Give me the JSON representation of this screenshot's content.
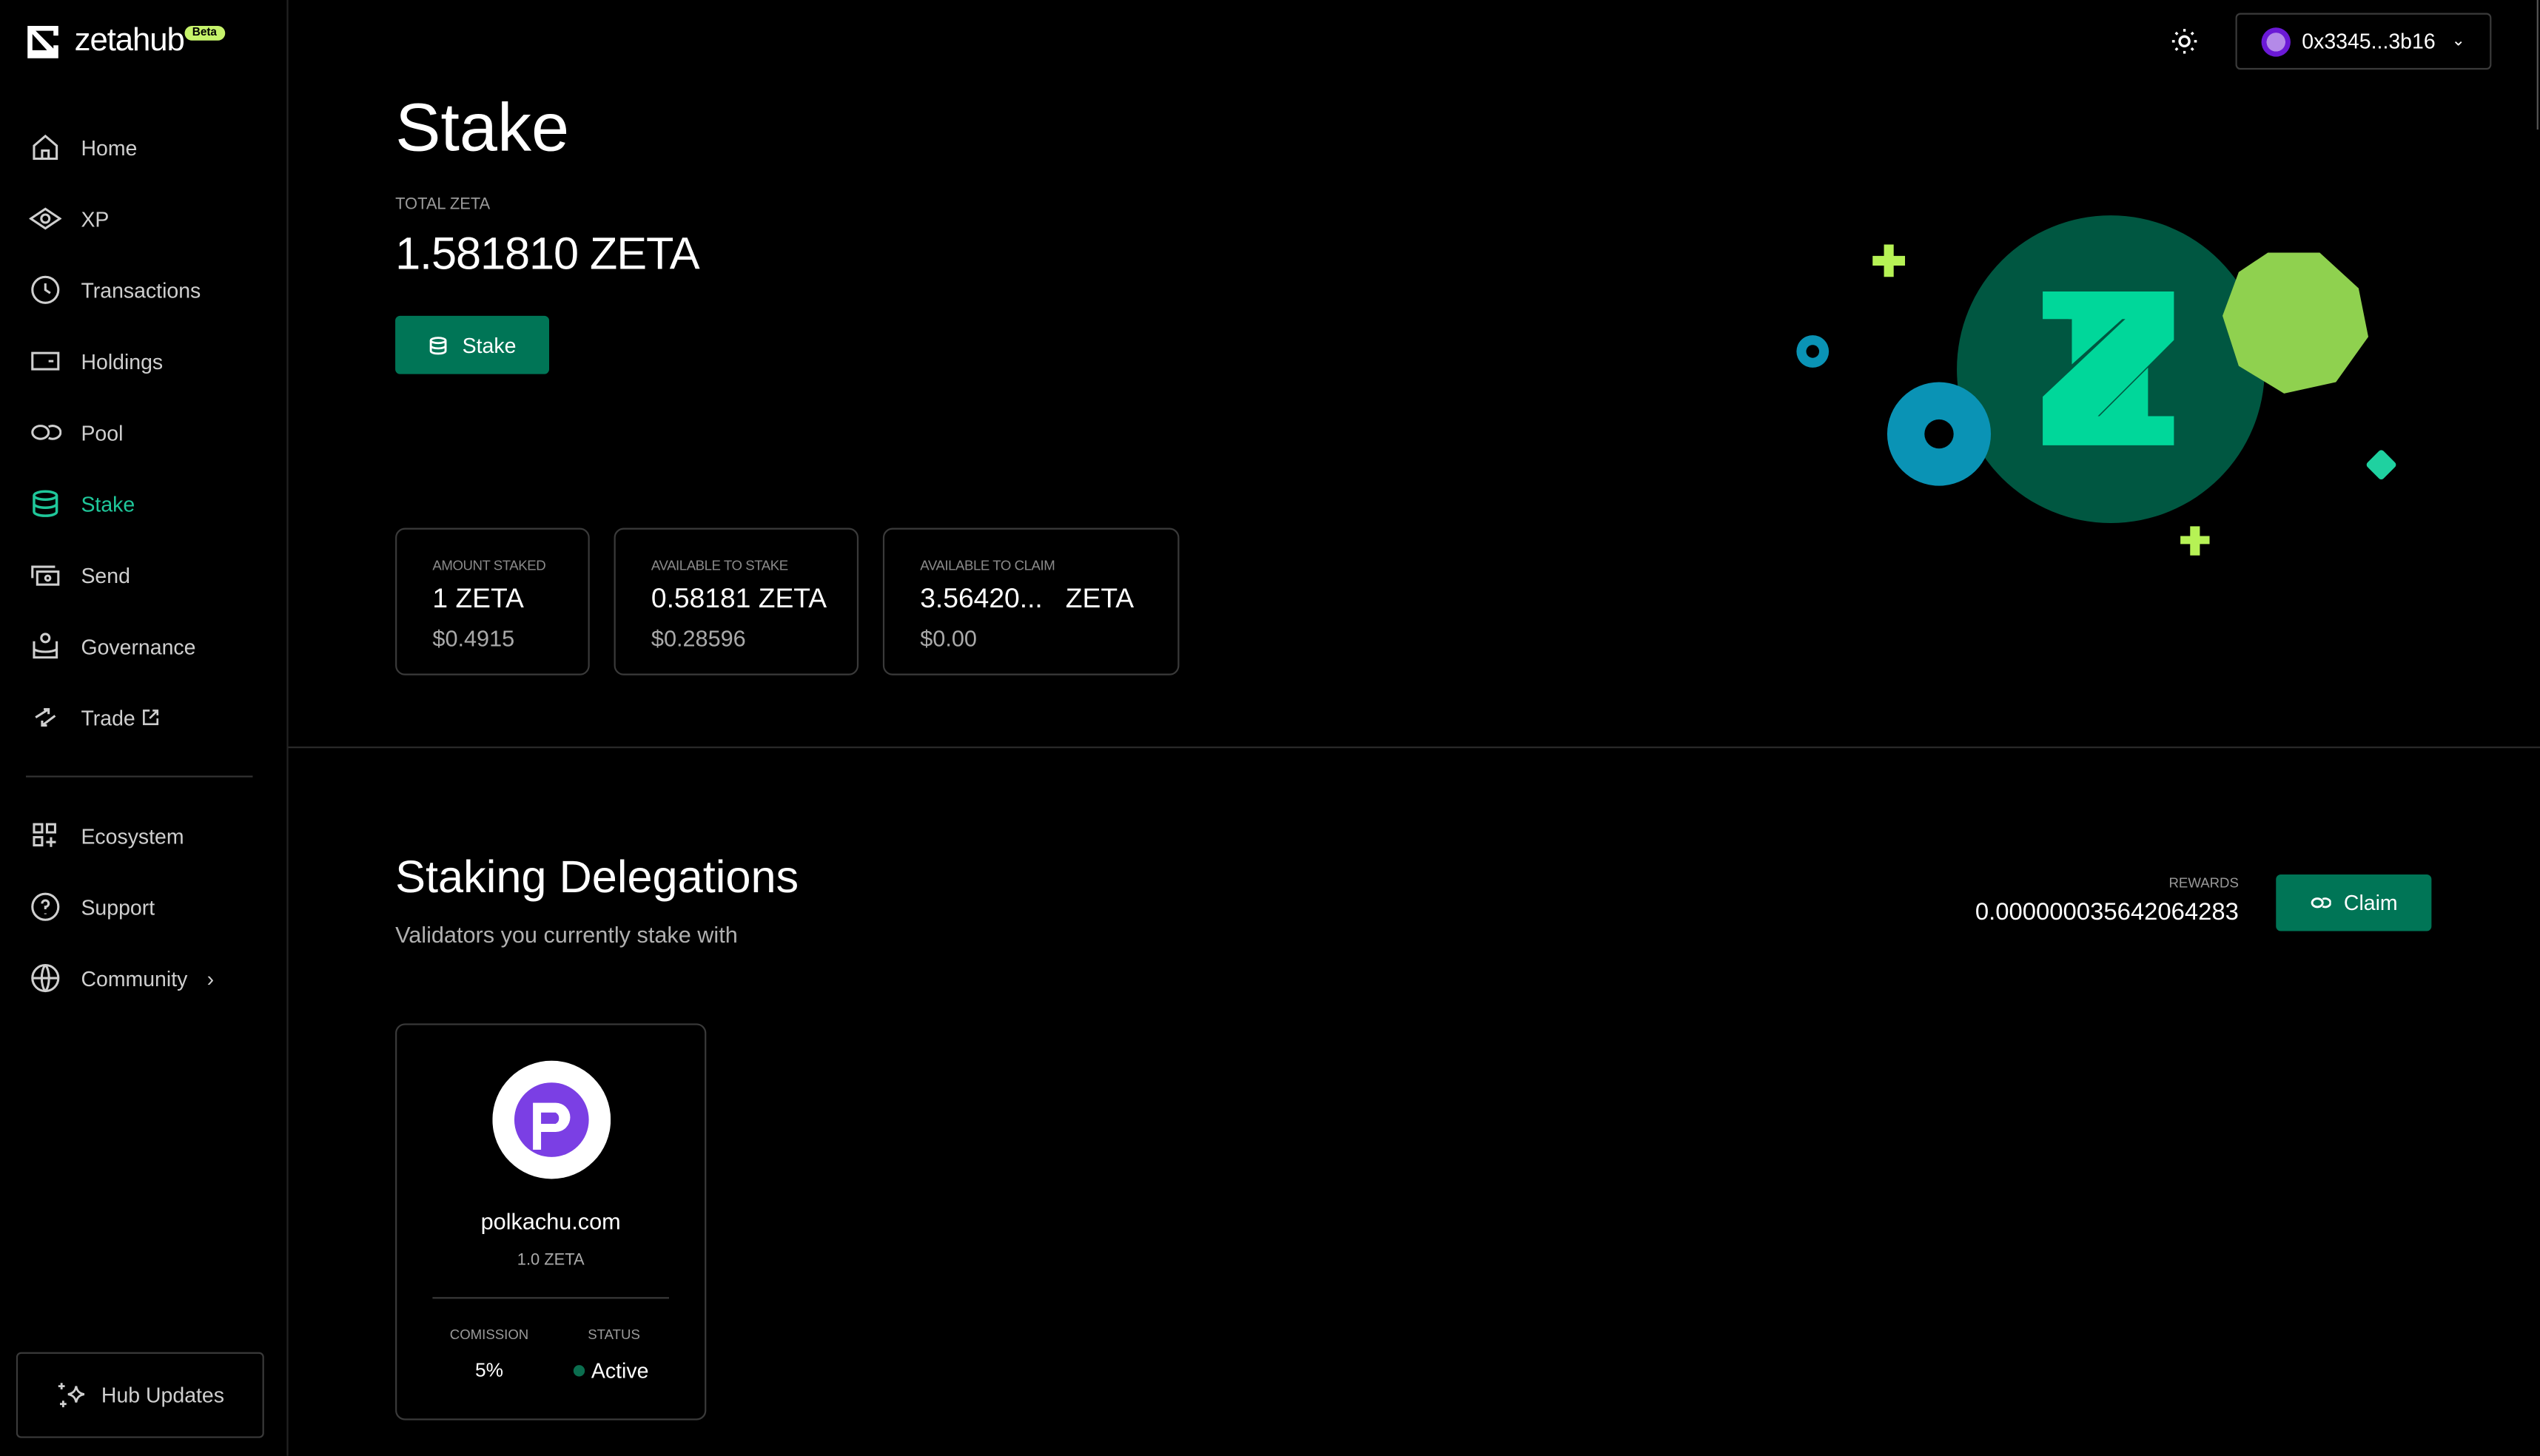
{
  "brand": {
    "name": "zetahub",
    "badge": "Beta"
  },
  "sidebar": {
    "items": [
      {
        "label": "Home",
        "icon": "home-icon"
      },
      {
        "label": "XP",
        "icon": "xp-diamond-icon"
      },
      {
        "label": "Transactions",
        "icon": "clock-icon"
      },
      {
        "label": "Holdings",
        "icon": "wallet-icon"
      },
      {
        "label": "Pool",
        "icon": "pool-icon"
      },
      {
        "label": "Stake",
        "icon": "database-icon",
        "active": true
      },
      {
        "label": "Send",
        "icon": "send-icon"
      },
      {
        "label": "Governance",
        "icon": "governance-icon"
      },
      {
        "label": "Trade",
        "icon": "trade-icon"
      }
    ],
    "secondary": [
      {
        "label": "Ecosystem",
        "icon": "apps-plus-icon"
      },
      {
        "label": "Support",
        "icon": "help-circle-icon"
      },
      {
        "label": "Community",
        "icon": "globe-icon"
      }
    ],
    "hub_updates": "Hub Updates"
  },
  "header": {
    "wallet": "0x3345...3b16"
  },
  "main": {
    "title": "Stake",
    "total_label": "TOTAL ZETA",
    "total_value": "1.581810 ZETA",
    "stake_button": "Stake",
    "cards": [
      {
        "label": "AMOUNT STAKED",
        "value": "1 ZETA",
        "usd": "$0.4915"
      },
      {
        "label": "AVAILABLE TO STAKE",
        "value": "0.58181 ZETA",
        "usd": "$0.28596"
      },
      {
        "label": "AVAILABLE TO CLAIM",
        "value": "3.56420...   ZETA",
        "usd": "$0.00"
      }
    ]
  },
  "delegations": {
    "title": "Staking Delegations",
    "subtitle": "Validators you currently stake with",
    "rewards_label": "REWARDS",
    "rewards_value": "0.000000035642064283",
    "claim_button": "Claim",
    "validators": [
      {
        "name": "polkachu.com",
        "amount": "1.0 ZETA",
        "commission_label": "COMISSION",
        "commission": "5%",
        "status_label": "STATUS",
        "status": "Active"
      }
    ]
  },
  "colors": {
    "accent": "#007556",
    "active_nav": "#1fc79a",
    "beta": "#c6f36b",
    "validator_logo": "#7b3fe4",
    "status_active": "#0b6e4f"
  }
}
